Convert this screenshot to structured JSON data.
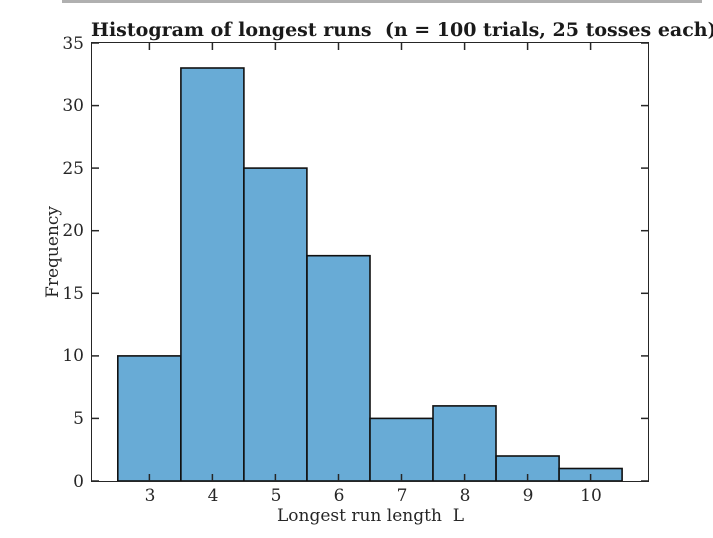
{
  "window": {
    "top_strip_color": "#b0b0b0",
    "background": "#ffffff"
  },
  "chart_data": {
    "type": "bar",
    "title": "Histogram of longest runs  (n = 100 trials, 25 tosses each)",
    "xlabel": "Longest run length  L",
    "ylabel": "Frequency",
    "categories": [
      3,
      4,
      5,
      6,
      7,
      8,
      9,
      10
    ],
    "values": [
      10,
      33,
      25,
      18,
      5,
      6,
      2,
      1
    ],
    "bin_width": 1,
    "xticks": [
      3,
      4,
      5,
      6,
      7,
      8,
      9,
      10
    ],
    "yticks": [
      0,
      5,
      10,
      15,
      20,
      25,
      30,
      35
    ],
    "xlim": [
      2.09,
      10.91
    ],
    "ylim": [
      0,
      35
    ],
    "grid": false,
    "legend": null,
    "bar_fill_color": "#68ABD6",
    "bar_edge_color": "#111111",
    "axis_color": "#262626",
    "tick_direction": "in",
    "box": true
  }
}
